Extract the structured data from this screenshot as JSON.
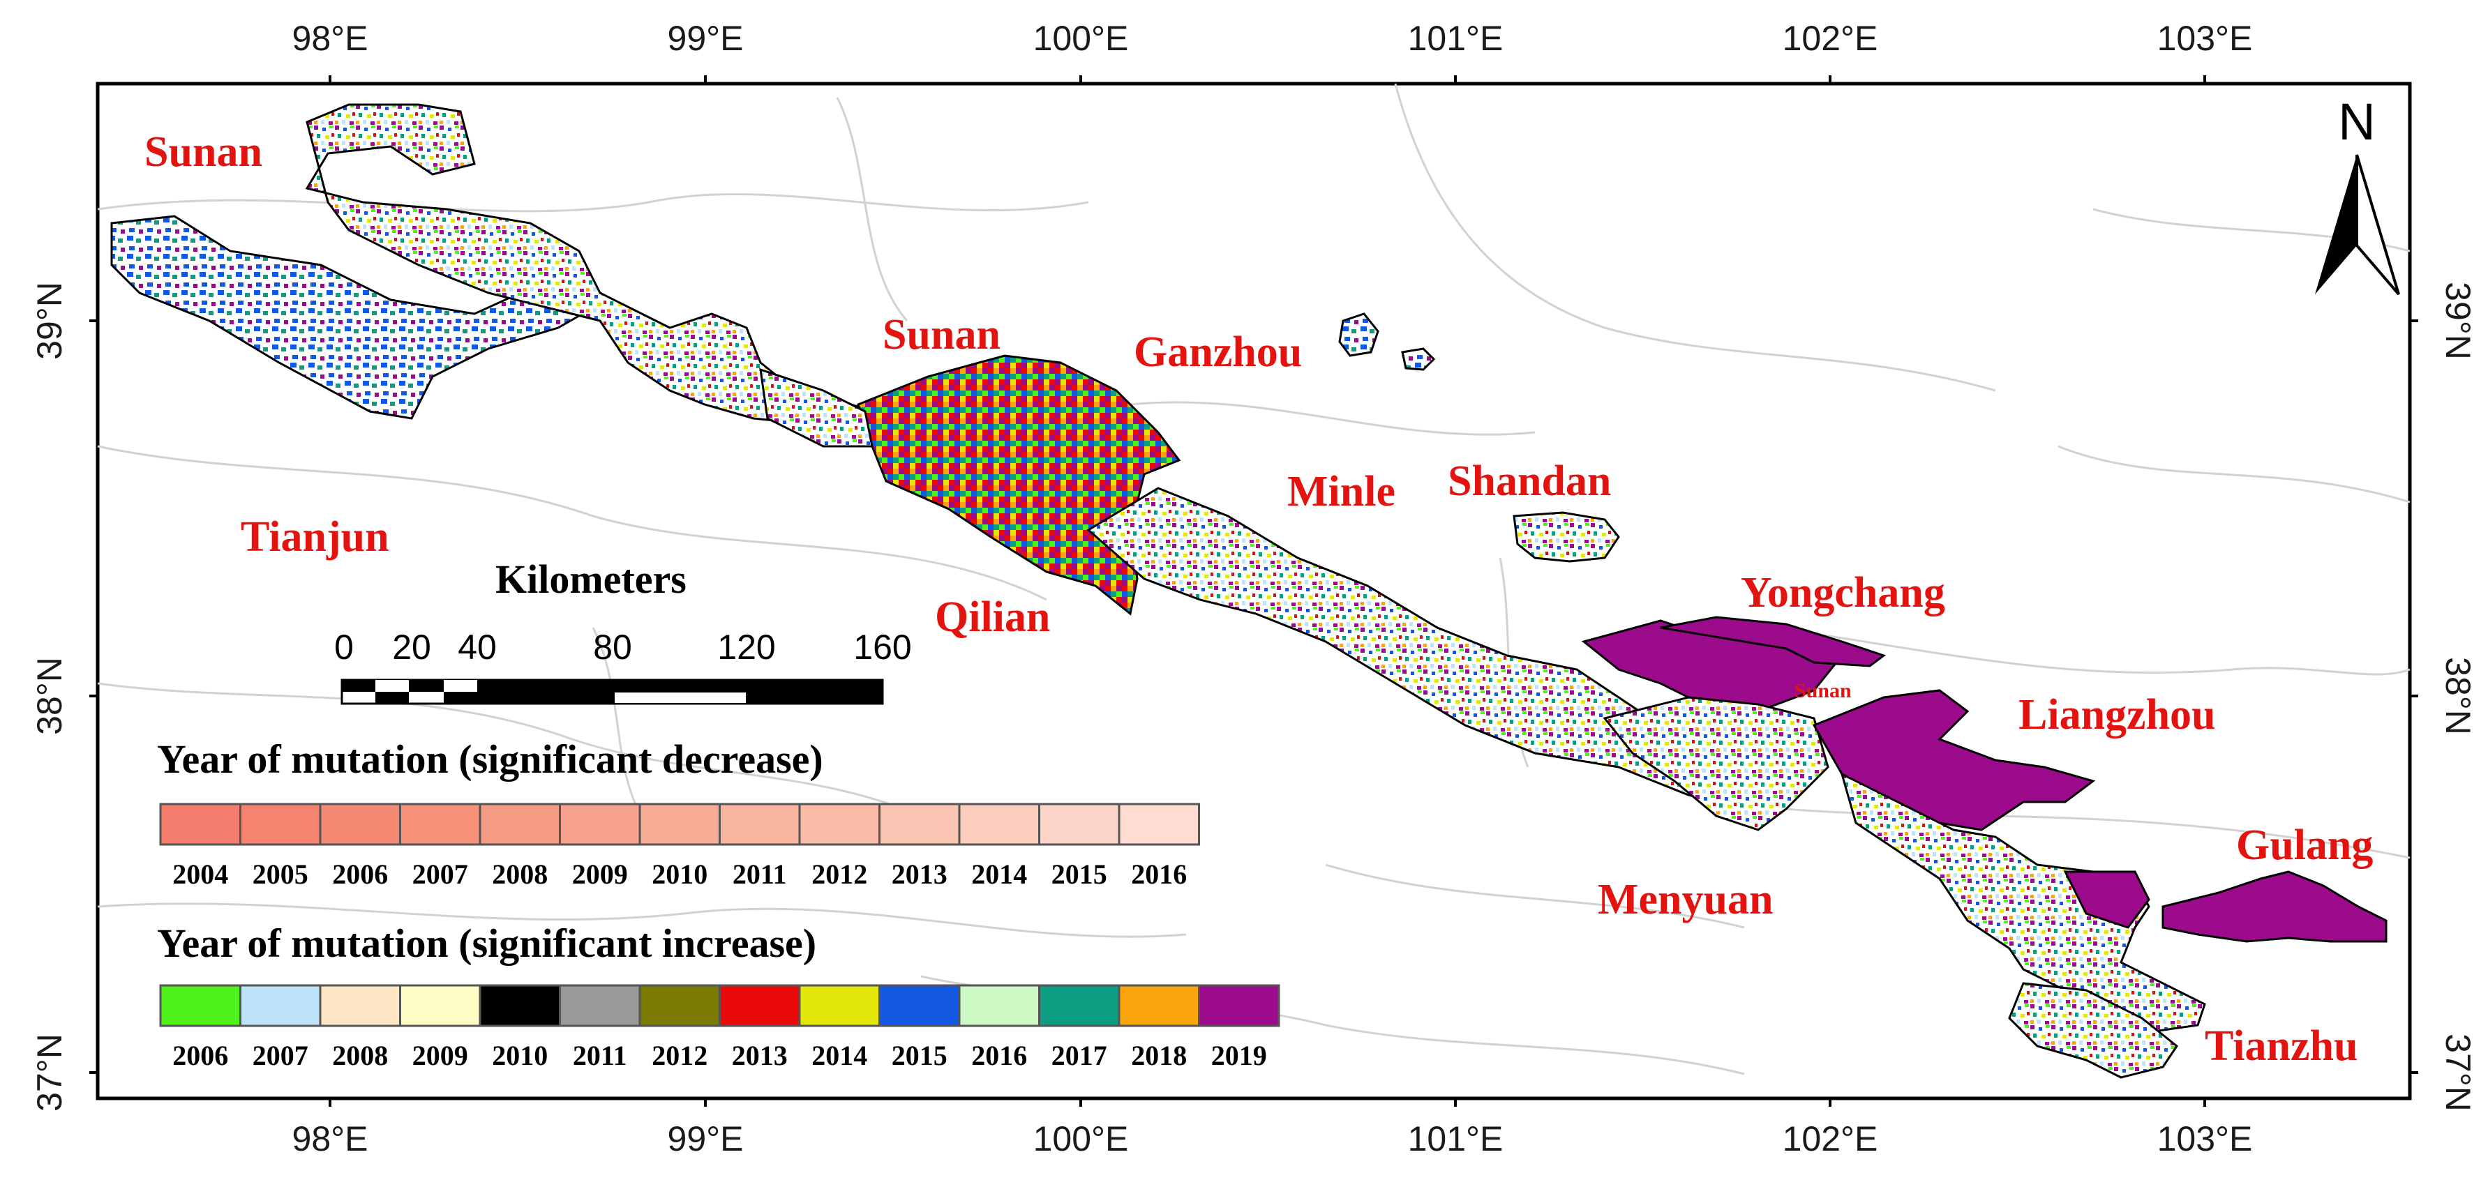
{
  "map": {
    "longitude_ticks": [
      "98°E",
      "99°E",
      "100°E",
      "101°E",
      "102°E",
      "103°E"
    ],
    "latitude_ticks": [
      "39°N",
      "38°N",
      "37°N"
    ],
    "north_arrow_label": "N",
    "place_labels": [
      "Sunan",
      "Sunan",
      "Ganzhou",
      "Minle",
      "Shandan",
      "Tianjun",
      "Qilian",
      "Yongchang",
      "Sunan",
      "Liangzhou",
      "Gulang",
      "Menyuan",
      "Tianzhu"
    ]
  },
  "scale_bar": {
    "title": "Kilometers",
    "ticks": [
      "0",
      "20",
      "40",
      "80",
      "120",
      "160"
    ]
  },
  "legend_decrease": {
    "title": "Year of mutation (significant decrease)",
    "years": [
      "2004",
      "2005",
      "2006",
      "2007",
      "2008",
      "2009",
      "2010",
      "2011",
      "2012",
      "2013",
      "2014",
      "2015",
      "2016"
    ],
    "colors": [
      "#f47d6e",
      "#f4846f",
      "#f58a74",
      "#f69279",
      "#f69b83",
      "#f7a38d",
      "#f8ac96",
      "#f9b4a0",
      "#fabca9",
      "#fbc5b3",
      "#fccdbd",
      "#fdd5c8",
      "#fedcd2"
    ]
  },
  "legend_increase": {
    "title": "Year of mutation (significant increase)",
    "years": [
      "2006",
      "2007",
      "2008",
      "2009",
      "2010",
      "2011",
      "2012",
      "2013",
      "2014",
      "2015",
      "2016",
      "2017",
      "2018",
      "2019"
    ],
    "colors": [
      "#4ff21d",
      "#bfe3f8",
      "#fde6c3",
      "#fefcc4",
      "#000000",
      "#9a9a9a",
      "#7a7a00",
      "#ea0a0a",
      "#e4e70a",
      "#1258e2",
      "#cdf9c4",
      "#0d9d82",
      "#fba50e",
      "#9b0b8c"
    ]
  }
}
